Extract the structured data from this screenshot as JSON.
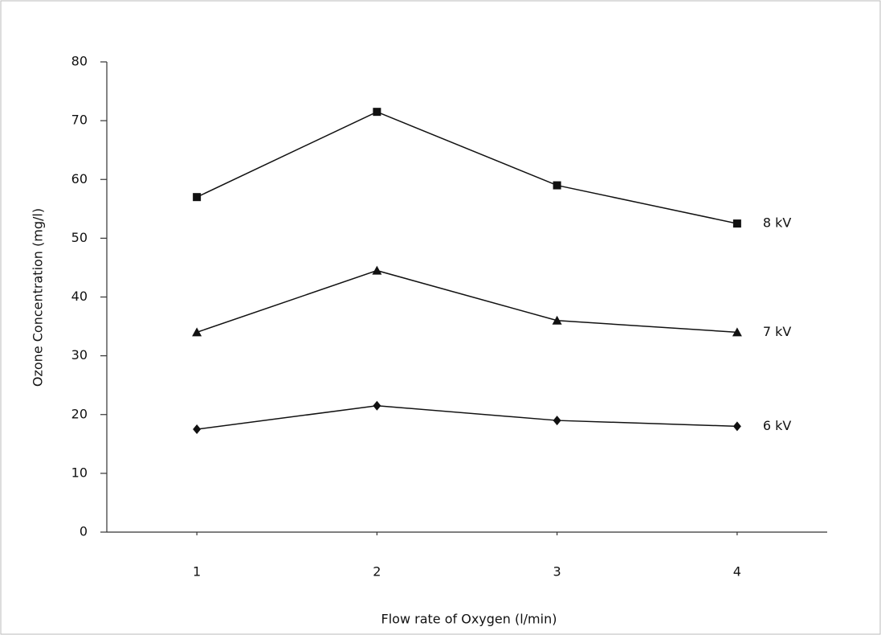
{
  "chart_data": {
    "type": "line",
    "x_label": "Flow rate of Oxygen (l/min)",
    "y_label": "Ozone Concentration (mg/l)",
    "x": [
      1,
      2,
      3,
      4
    ],
    "xlim": [
      0.5,
      4.5
    ],
    "xticks": [
      1,
      2,
      3,
      4
    ],
    "ylim": [
      0,
      80
    ],
    "yticks": [
      0,
      10,
      20,
      30,
      40,
      50,
      60,
      70,
      80
    ],
    "series": [
      {
        "name": "8 kV",
        "color": "#111111",
        "marker": "square",
        "values": [
          57,
          71.5,
          59,
          52.5
        ]
      },
      {
        "name": "7 kV",
        "color": "#111111",
        "marker": "triangle",
        "values": [
          34,
          44.5,
          36,
          34
        ]
      },
      {
        "name": "6 kV",
        "color": "#111111",
        "marker": "diamond",
        "values": [
          17.5,
          21.5,
          19,
          18
        ]
      }
    ]
  }
}
